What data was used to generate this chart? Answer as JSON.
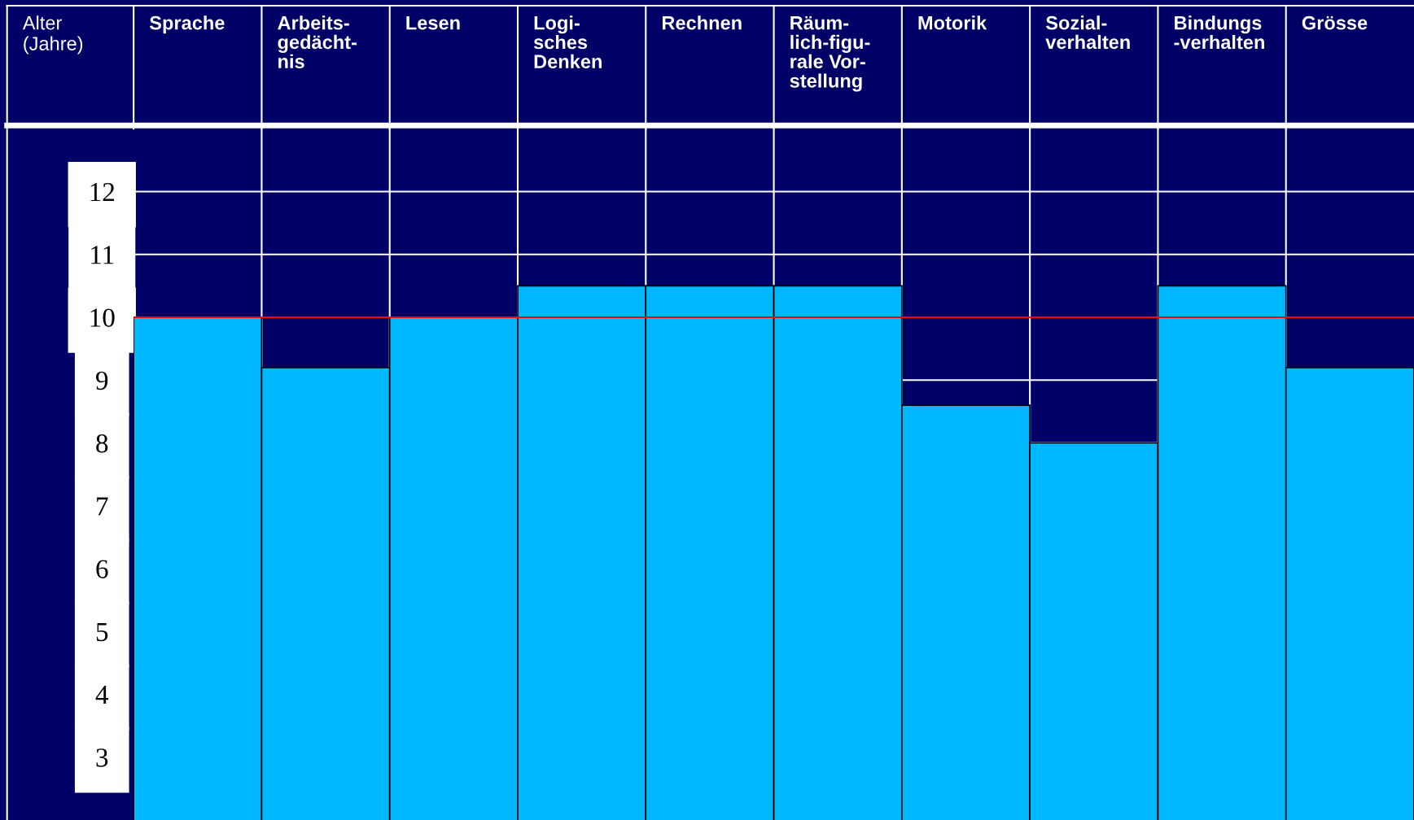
{
  "chart_data": {
    "type": "bar",
    "ylabel": "Alter\n(Jahre)",
    "categories": [
      "Sprache",
      "Arbeits-\ngedächt-\nnis",
      "Lesen",
      "Logi-\nsches\nDenken",
      "Rechnen",
      "Räum-\nlich-figu-\nrale Vor-\nstellung",
      "Motorik",
      "Sozial-\nverhalten",
      "Bindungs\n-verhalten",
      "Grösse"
    ],
    "values": [
      10,
      9.2,
      10,
      10.5,
      10.5,
      10.5,
      8.6,
      8,
      10.5,
      9.2
    ],
    "color": "#00b8ff",
    "ylim": [
      2,
      13
    ],
    "yticks": [
      3,
      4,
      5,
      6,
      7,
      8,
      9,
      10,
      11,
      12
    ],
    "ref_lines": [
      {
        "axis": "y",
        "value": 10,
        "color": "#ff0000"
      }
    ],
    "grid": true
  }
}
